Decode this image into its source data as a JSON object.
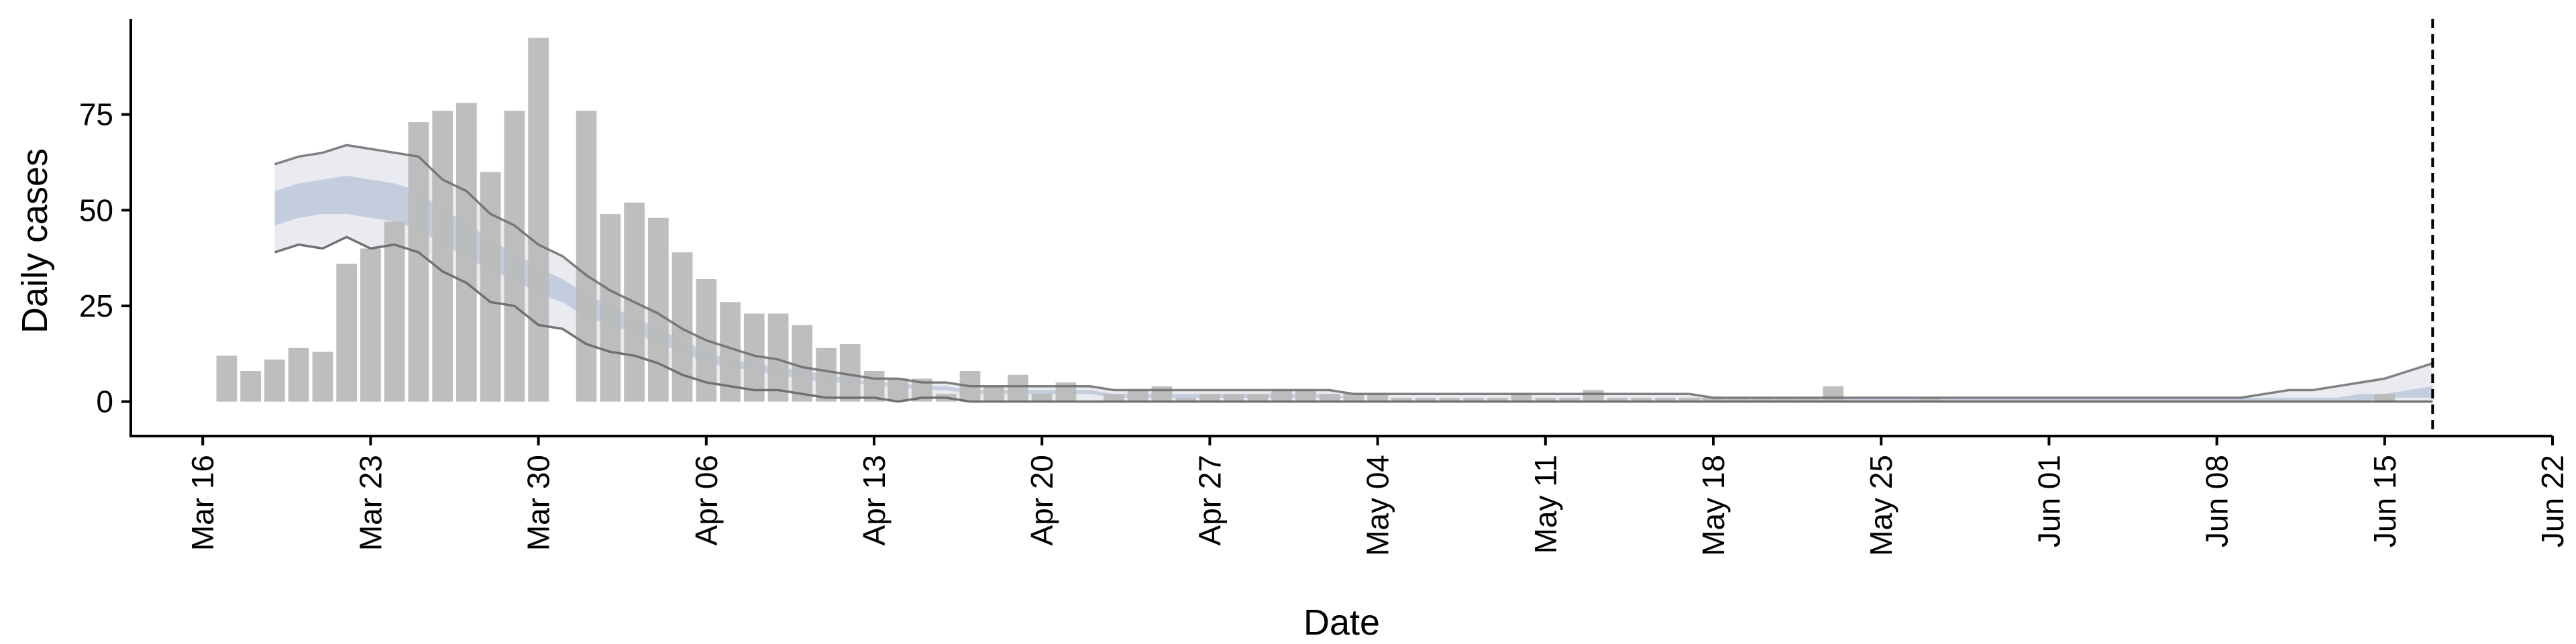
{
  "chart_data": {
    "type": "bar",
    "title": "",
    "xlabel": "Date",
    "ylabel": "Daily cases",
    "x_axis": {
      "kind": "date",
      "range": [
        "2020-03-13",
        "2020-06-22"
      ],
      "ticks": [
        {
          "date": "2020-03-16",
          "label": "Mar 16"
        },
        {
          "date": "2020-03-23",
          "label": "Mar 23"
        },
        {
          "date": "2020-03-30",
          "label": "Mar 30"
        },
        {
          "date": "2020-04-06",
          "label": "Apr 06"
        },
        {
          "date": "2020-04-13",
          "label": "Apr 13"
        },
        {
          "date": "2020-04-20",
          "label": "Apr 20"
        },
        {
          "date": "2020-04-27",
          "label": "Apr 27"
        },
        {
          "date": "2020-05-04",
          "label": "May 04"
        },
        {
          "date": "2020-05-11",
          "label": "May 11"
        },
        {
          "date": "2020-05-18",
          "label": "May 18"
        },
        {
          "date": "2020-05-25",
          "label": "May 25"
        },
        {
          "date": "2020-06-01",
          "label": "Jun 01"
        },
        {
          "date": "2020-06-08",
          "label": "Jun 08"
        },
        {
          "date": "2020-06-15",
          "label": "Jun 15"
        },
        {
          "date": "2020-06-22",
          "label": "Jun 22"
        }
      ]
    },
    "y_axis": {
      "range": [
        -9,
        100
      ],
      "ticks": [
        0,
        25,
        50,
        75
      ]
    },
    "grid": false,
    "colors": {
      "bars": "#bbbbbb",
      "band_outer": "#e9ebf1",
      "band_inner": "#c4cddd",
      "band_lines": "#6b6b6b",
      "vline": "#000000"
    },
    "bars": {
      "start_date": "2020-03-17",
      "values": [
        12,
        8,
        11,
        14,
        13,
        36,
        40,
        47,
        73,
        76,
        78,
        60,
        76,
        95,
        0,
        76,
        49,
        52,
        48,
        39,
        32,
        26,
        23,
        23,
        20,
        14,
        15,
        8,
        6,
        6,
        2,
        8,
        4,
        7,
        2,
        5,
        0,
        2,
        3,
        4,
        1,
        2,
        2,
        2,
        3,
        3,
        2,
        2,
        2,
        1,
        1,
        1,
        1,
        1,
        2,
        1,
        1,
        3,
        1,
        1,
        1,
        1,
        1,
        1,
        1,
        1,
        1,
        4,
        0,
        0,
        0,
        1,
        0,
        0,
        0,
        0,
        0,
        0,
        0,
        0,
        0,
        0,
        0,
        0,
        0,
        0,
        0,
        0,
        0,
        0,
        0,
        0,
        0,
        0,
        0,
        0,
        0,
        0,
        0,
        0,
        0,
        0,
        0,
        0,
        0,
        0,
        0,
        0,
        0,
        0,
        0,
        0,
        0,
        0,
        0,
        0,
        0,
        0,
        0,
        0,
        0,
        0,
        0,
        0,
        0,
        0,
        2
      ],
      "extra": {
        "date": "2020-06-15",
        "value": 2
      }
    },
    "forecast_band": {
      "start_date": "2020-03-19",
      "upper_outer": [
        62,
        64,
        65,
        67,
        66,
        65,
        64,
        58,
        55,
        49,
        46,
        41,
        38,
        33,
        29,
        26,
        23,
        19,
        16,
        14,
        12,
        11,
        9,
        8,
        7,
        6,
        6,
        5,
        5,
        4,
        4,
        4,
        4,
        4,
        4,
        3,
        3,
        3,
        3,
        3,
        3,
        3,
        3,
        3,
        3,
        2,
        2,
        2,
        2,
        2,
        2,
        2,
        2,
        2,
        2,
        2,
        2,
        2,
        2,
        2,
        1,
        1,
        1,
        1,
        1,
        1,
        1,
        1,
        1,
        1,
        1,
        1,
        1,
        1,
        1,
        1,
        1,
        1,
        1,
        1,
        1,
        1,
        1,
        2,
        3,
        3,
        4,
        5,
        6,
        8,
        10
      ],
      "upper_inner": [
        55,
        57,
        58,
        59,
        58,
        57,
        55,
        50,
        47,
        42,
        39,
        35,
        32,
        28,
        25,
        22,
        19,
        16,
        13,
        11,
        10,
        9,
        8,
        7,
        6,
        5,
        5,
        4,
        4,
        3,
        3,
        3,
        3,
        3,
        3,
        2,
        2,
        2,
        2,
        2,
        2,
        2,
        2,
        2,
        2,
        1,
        1,
        1,
        1,
        1,
        1,
        1,
        1,
        1,
        1,
        1,
        1,
        1,
        1,
        1,
        1,
        1,
        1,
        1,
        1,
        1,
        1,
        1,
        1,
        1,
        1,
        1,
        1,
        1,
        1,
        1,
        1,
        1,
        1,
        1,
        1,
        1,
        1,
        1,
        1,
        1,
        1,
        2,
        2,
        3,
        4
      ],
      "lower_inner": [
        46,
        48,
        49,
        49,
        48,
        47,
        45,
        41,
        38,
        34,
        32,
        28,
        26,
        22,
        20,
        18,
        15,
        13,
        10,
        9,
        8,
        7,
        6,
        5,
        5,
        4,
        4,
        3,
        3,
        2,
        2,
        2,
        2,
        2,
        2,
        1,
        1,
        1,
        1,
        1,
        1,
        1,
        1,
        1,
        1,
        1,
        1,
        1,
        1,
        1,
        1,
        1,
        1,
        1,
        1,
        1,
        1,
        1,
        1,
        1,
        0,
        0,
        0,
        0,
        0,
        0,
        0,
        0,
        0,
        0,
        0,
        0,
        0,
        0,
        0,
        0,
        0,
        0,
        0,
        0,
        0,
        0,
        0,
        0,
        0,
        0,
        0,
        0,
        1,
        1,
        1
      ],
      "lower_outer": [
        39,
        41,
        40,
        43,
        40,
        41,
        39,
        34,
        31,
        26,
        25,
        20,
        19,
        15,
        13,
        12,
        10,
        7,
        5,
        4,
        3,
        3,
        2,
        1,
        1,
        1,
        0,
        1,
        1,
        0,
        0,
        0,
        0,
        0,
        0,
        0,
        0,
        0,
        0,
        0,
        0,
        0,
        0,
        0,
        0,
        0,
        0,
        0,
        0,
        0,
        0,
        0,
        0,
        0,
        0,
        0,
        0,
        0,
        0,
        0,
        0,
        0,
        0,
        0,
        0,
        0,
        0,
        0,
        0,
        0,
        0,
        0,
        0,
        0,
        0,
        0,
        0,
        0,
        0,
        0,
        0,
        0,
        0,
        0,
        0,
        0,
        0,
        0,
        0,
        0,
        0
      ]
    },
    "vline_date": "2020-06-17"
  }
}
